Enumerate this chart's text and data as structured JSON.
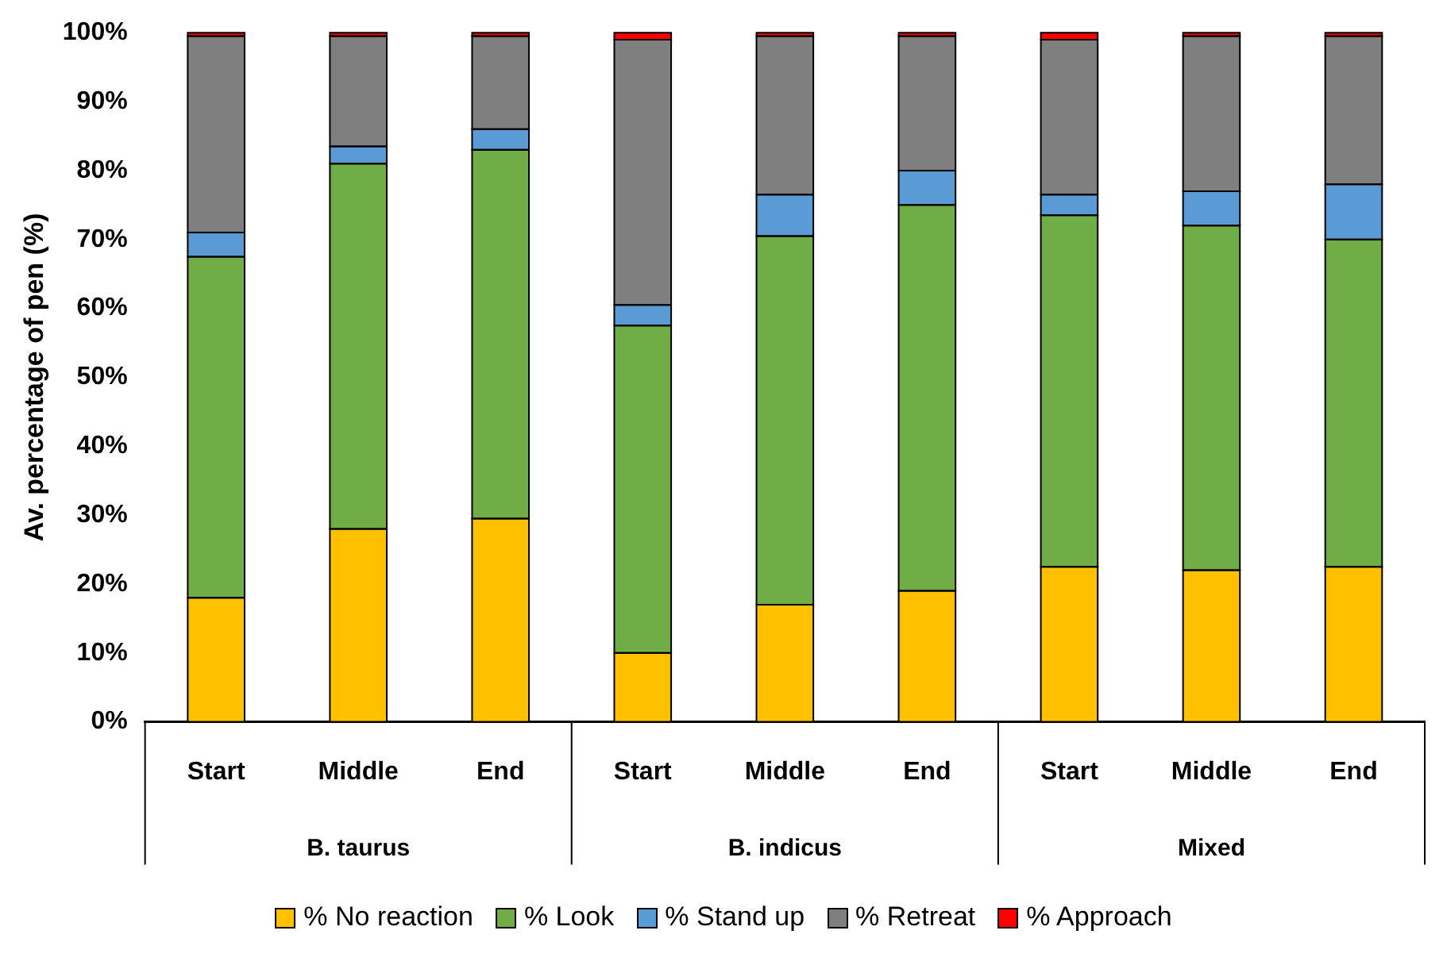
{
  "chart_data": {
    "type": "bar",
    "stacked": true,
    "ylabel": "Av. percentage of pen (%)",
    "categories": [
      "Start",
      "Middle",
      "End",
      "Start",
      "Middle",
      "End",
      "Start",
      "Middle",
      "End"
    ],
    "annotations": [
      "B. taurus",
      "B. indicus",
      "Mixed"
    ],
    "series": [
      {
        "name": "% No reaction",
        "color": "#ffc000",
        "values": [
          18,
          28,
          29.5,
          10,
          17,
          19,
          22.5,
          22,
          22.5
        ]
      },
      {
        "name": "% Look",
        "color": "#70ad47",
        "values": [
          49.5,
          53,
          53.5,
          47.5,
          53.5,
          56,
          51,
          50,
          47.5
        ]
      },
      {
        "name": "% Stand up",
        "color": "#5b9bd5",
        "values": [
          3.5,
          2.5,
          3,
          3,
          6,
          5,
          3,
          5,
          8
        ]
      },
      {
        "name": "% Retreat",
        "color": "#7f7f7f",
        "values": [
          28.5,
          16,
          13.5,
          38.5,
          23,
          19.5,
          22.5,
          22.5,
          21.5
        ]
      },
      {
        "name": "% Approach",
        "color": "#ff0000",
        "values": [
          0.5,
          0.5,
          0.5,
          1,
          0.5,
          0.5,
          1,
          0.5,
          0.5
        ]
      }
    ],
    "ylim": [
      0,
      100
    ],
    "yticks": [
      {
        "value": 0,
        "label": "0%"
      },
      {
        "value": 10,
        "label": "10%"
      },
      {
        "value": 20,
        "label": "20%"
      },
      {
        "value": 30,
        "label": "30%"
      },
      {
        "value": 40,
        "label": "40%"
      },
      {
        "value": 50,
        "label": "50%"
      },
      {
        "value": 60,
        "label": "60%"
      },
      {
        "value": 70,
        "label": "70%"
      },
      {
        "value": 80,
        "label": "80%"
      },
      {
        "value": 90,
        "label": "90%"
      },
      {
        "value": 100,
        "label": "100%"
      }
    ],
    "grid": false,
    "legend": "bottom"
  }
}
